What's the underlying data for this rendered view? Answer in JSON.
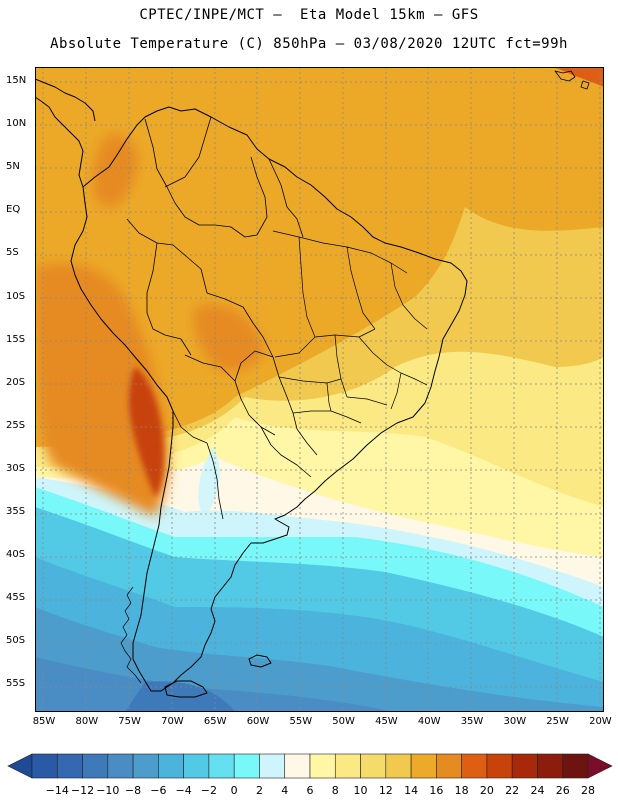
{
  "title": {
    "line1": "CPTEC/INPE/MCT –  Eta Model 15km – GFS",
    "line2": "Absolute Temperature (C) 850hPa – 03/08/2020 12UTC fct=99h"
  },
  "map": {
    "lat_labels": [
      "15N",
      "10N",
      "5N",
      "EQ",
      "5S",
      "10S",
      "15S",
      "20S",
      "25S",
      "30S",
      "35S",
      "40S",
      "45S",
      "50S",
      "55S"
    ],
    "lon_labels": [
      "85W",
      "80W",
      "75W",
      "70W",
      "65W",
      "60W",
      "55W",
      "50W",
      "45W",
      "40W",
      "35W",
      "30W",
      "25W",
      "20W"
    ]
  },
  "colorbar": {
    "labels": [
      "-14",
      "-12",
      "-10",
      "-8",
      "-6",
      "-4",
      "-2",
      "0",
      "2",
      "4",
      "6",
      "8",
      "10",
      "12",
      "14",
      "16",
      "18",
      "20",
      "22",
      "24",
      "26",
      "28"
    ],
    "colors": [
      "#1e4a96",
      "#2a5aa6",
      "#3468b0",
      "#3e79ba",
      "#4a8cc4",
      "#4c9dcc",
      "#4cb4dc",
      "#52cae6",
      "#64e0f0",
      "#78f8f8",
      "#cdf5fb",
      "#fff8e6",
      "#fff6a6",
      "#fbea84",
      "#f5dc6a",
      "#f1c94e",
      "#eda92a",
      "#e68a22",
      "#de5e14",
      "#c8420c",
      "#a8280a",
      "#8c1c0c",
      "#6e1410",
      "#7a0e2a"
    ]
  }
}
